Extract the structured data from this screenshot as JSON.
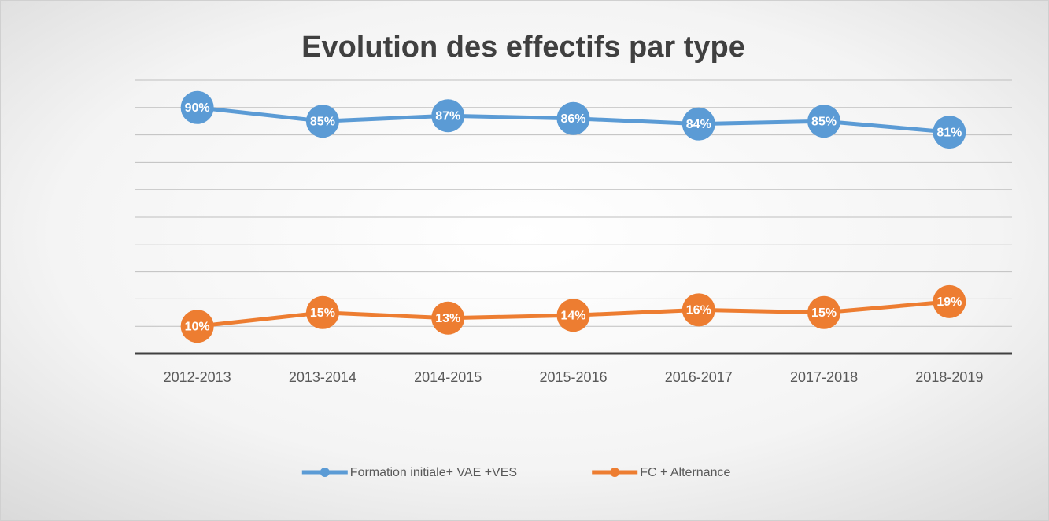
{
  "chart_data": {
    "type": "line",
    "title": "Evolution des effectifs par type",
    "categories": [
      "2012-2013",
      "2013-2014",
      "2014-2015",
      "2015-2016",
      "2016-2017",
      "2017-2018",
      "2018-2019"
    ],
    "series": [
      {
        "name": "Formation initiale+ VAE +VES",
        "color": "#5b9bd5",
        "values": [
          90,
          85,
          87,
          86,
          84,
          85,
          81
        ],
        "value_labels": [
          "90%",
          "85%",
          "87%",
          "86%",
          "84%",
          "85%",
          "81%"
        ]
      },
      {
        "name": "FC + Alternance",
        "color": "#ed7d31",
        "values": [
          10,
          15,
          13,
          14,
          16,
          15,
          19
        ],
        "value_labels": [
          "10%",
          "15%",
          "13%",
          "14%",
          "16%",
          "15%",
          "19%"
        ]
      }
    ],
    "ylim": [
      0,
      100
    ],
    "yticks": [
      0,
      10,
      20,
      30,
      40,
      50,
      60,
      70,
      80,
      90,
      100
    ],
    "y_axis_labels": false,
    "grid": true,
    "legend": "bottom"
  }
}
